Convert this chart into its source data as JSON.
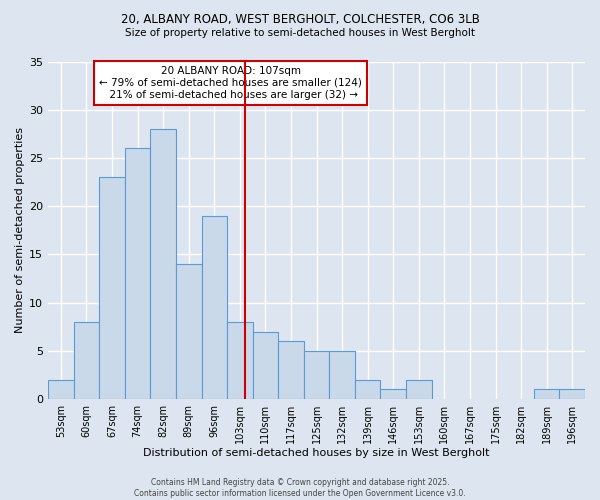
{
  "title1": "20, ALBANY ROAD, WEST BERGHOLT, COLCHESTER, CO6 3LB",
  "title2": "Size of property relative to semi-detached houses in West Bergholt",
  "xlabel": "Distribution of semi-detached houses by size in West Bergholt",
  "ylabel": "Number of semi-detached properties",
  "bin_labels": [
    "53sqm",
    "60sqm",
    "67sqm",
    "74sqm",
    "82sqm",
    "89sqm",
    "96sqm",
    "103sqm",
    "110sqm",
    "117sqm",
    "125sqm",
    "132sqm",
    "139sqm",
    "146sqm",
    "153sqm",
    "160sqm",
    "167sqm",
    "175sqm",
    "182sqm",
    "189sqm",
    "196sqm"
  ],
  "bar_heights": [
    2,
    8,
    23,
    26,
    28,
    14,
    19,
    8,
    7,
    6,
    5,
    5,
    2,
    1,
    2,
    0,
    0,
    0,
    0,
    1,
    1
  ],
  "bar_color": "#c9d9ea",
  "bar_edge_color": "#5b9bd5",
  "vline_color": "#cc0000",
  "annotation_text": "20 ALBANY ROAD: 107sqm\n← 79% of semi-detached houses are smaller (124)\n  21% of semi-detached houses are larger (32) →",
  "annotation_box_color": "#cc0000",
  "ylim": [
    0,
    35
  ],
  "yticks": [
    0,
    5,
    10,
    15,
    20,
    25,
    30,
    35
  ],
  "footer": "Contains HM Land Registry data © Crown copyright and database right 2025.\nContains public sector information licensed under the Open Government Licence v3.0.",
  "background_color": "#dde6f0",
  "plot_bg_color": "#dde6f0",
  "bin_width": 7,
  "bin_starts": [
    53,
    60,
    67,
    74,
    81,
    88,
    95,
    102,
    109,
    116,
    123,
    130,
    137,
    144,
    151,
    158,
    165,
    172,
    179,
    186,
    193
  ],
  "vline_x": 107
}
